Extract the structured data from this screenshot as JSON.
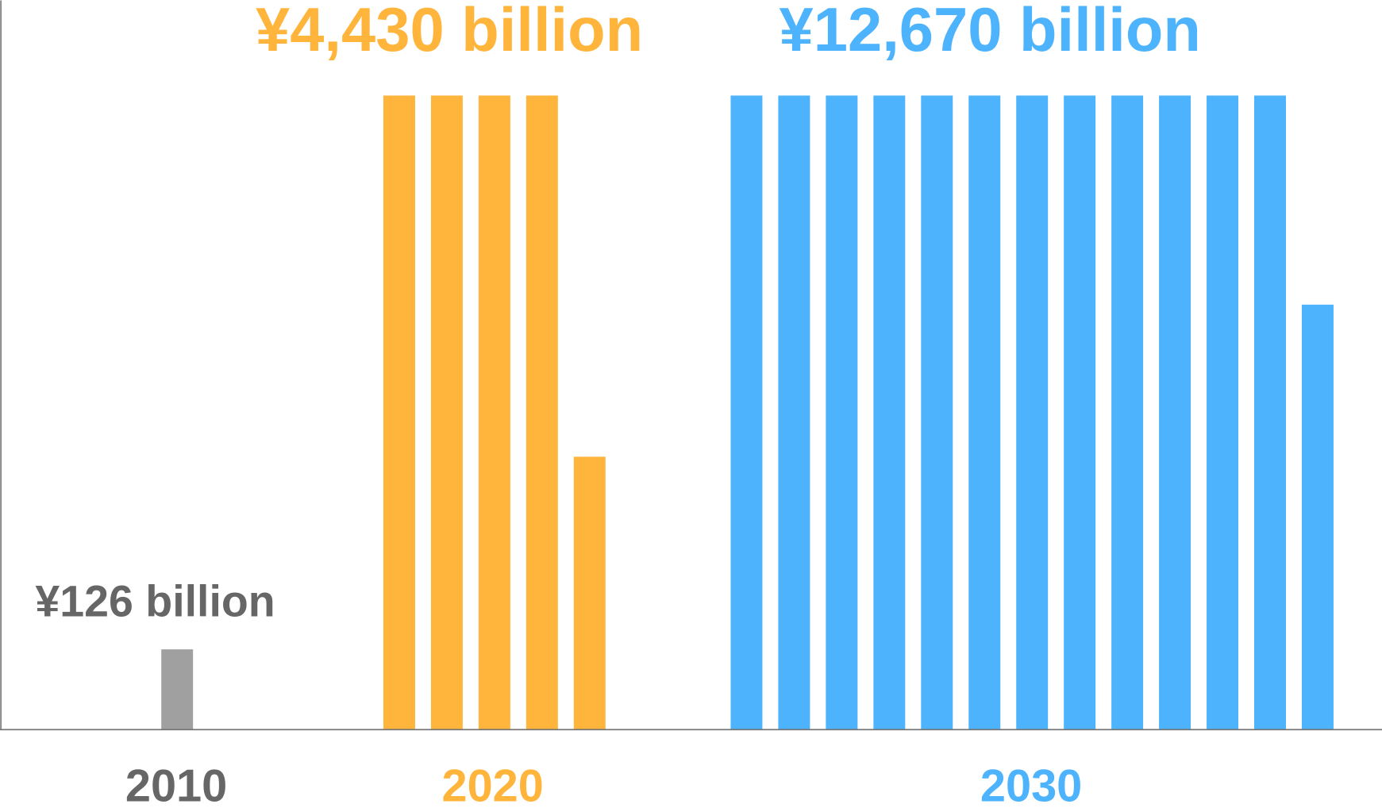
{
  "chart_data": {
    "type": "bar",
    "title": "",
    "xlabel": "",
    "ylabel": "",
    "unit_per_bar": 1000,
    "categories": [
      "2010",
      "2020",
      "2030"
    ],
    "values": [
      126,
      4430,
      12670
    ],
    "value_labels": [
      "¥126 billion",
      "¥4,430 billion",
      "¥12,670 billion"
    ],
    "colors": [
      "#a0a0a0",
      "#ffb43c",
      "#4db3fd"
    ],
    "label_colors": [
      "#666666",
      "#ffb43c",
      "#4db3fd"
    ],
    "grid": false,
    "legend": "none"
  }
}
